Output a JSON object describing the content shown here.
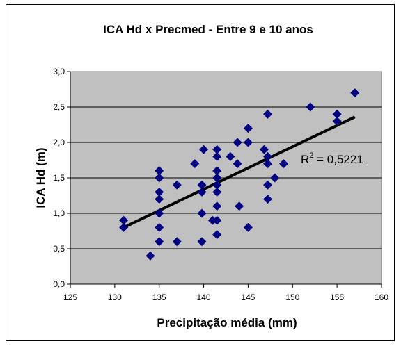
{
  "chart_data": {
    "type": "scatter",
    "title": "ICA Hd x Precmed - Entre 9 e 10 anos",
    "xlabel": "Precipitação média (mm)",
    "ylabel": "ICA Hd (m)",
    "xlim": [
      125,
      160
    ],
    "ylim": [
      0,
      3
    ],
    "x_ticks": [
      "125",
      "130",
      "135",
      "140",
      "145",
      "150",
      "155",
      "160"
    ],
    "y_ticks": [
      "0,0",
      "0,5",
      "1,0",
      "1,5",
      "2,0",
      "2,5",
      "3,0"
    ],
    "grid": "horizontal",
    "plot_background": "#c0c0c0",
    "marker_color": "#000080",
    "trendline_color": "#000000",
    "trendline": {
      "x": [
        131,
        157
      ],
      "y": [
        0.8,
        2.36
      ]
    },
    "r2": {
      "label": "R",
      "sup": "2",
      "value": " = 0,5221"
    },
    "points": [
      [
        131,
        0.9
      ],
      [
        131,
        0.8
      ],
      [
        134,
        0.4
      ],
      [
        135,
        1.6
      ],
      [
        135,
        1.5
      ],
      [
        135,
        1.3
      ],
      [
        135,
        1.2
      ],
      [
        135,
        1.0
      ],
      [
        135,
        0.8
      ],
      [
        135,
        0.6
      ],
      [
        137,
        1.4
      ],
      [
        137,
        0.6
      ],
      [
        139,
        1.7
      ],
      [
        139.8,
        1.4
      ],
      [
        139.8,
        1.3
      ],
      [
        139.8,
        1.0
      ],
      [
        139.8,
        0.6
      ],
      [
        140,
        1.9
      ],
      [
        141,
        0.9
      ],
      [
        141.5,
        1.9
      ],
      [
        141.5,
        1.8
      ],
      [
        141.5,
        1.6
      ],
      [
        141.5,
        1.5
      ],
      [
        141.5,
        1.4
      ],
      [
        141.5,
        1.3
      ],
      [
        141.5,
        1.1
      ],
      [
        141.5,
        0.9
      ],
      [
        141.5,
        0.7
      ],
      [
        143,
        1.8
      ],
      [
        143.8,
        2.0
      ],
      [
        143.8,
        1.7
      ],
      [
        144,
        1.1
      ],
      [
        145,
        2.2
      ],
      [
        145,
        2.0
      ],
      [
        145,
        0.8
      ],
      [
        146.8,
        1.9
      ],
      [
        147.2,
        2.4
      ],
      [
        147.2,
        1.8
      ],
      [
        147.2,
        1.7
      ],
      [
        147.2,
        1.4
      ],
      [
        147.2,
        1.2
      ],
      [
        148,
        1.5
      ],
      [
        149,
        1.7
      ],
      [
        152,
        2.5
      ],
      [
        155,
        2.4
      ],
      [
        155,
        2.3
      ],
      [
        157,
        2.7
      ]
    ]
  }
}
